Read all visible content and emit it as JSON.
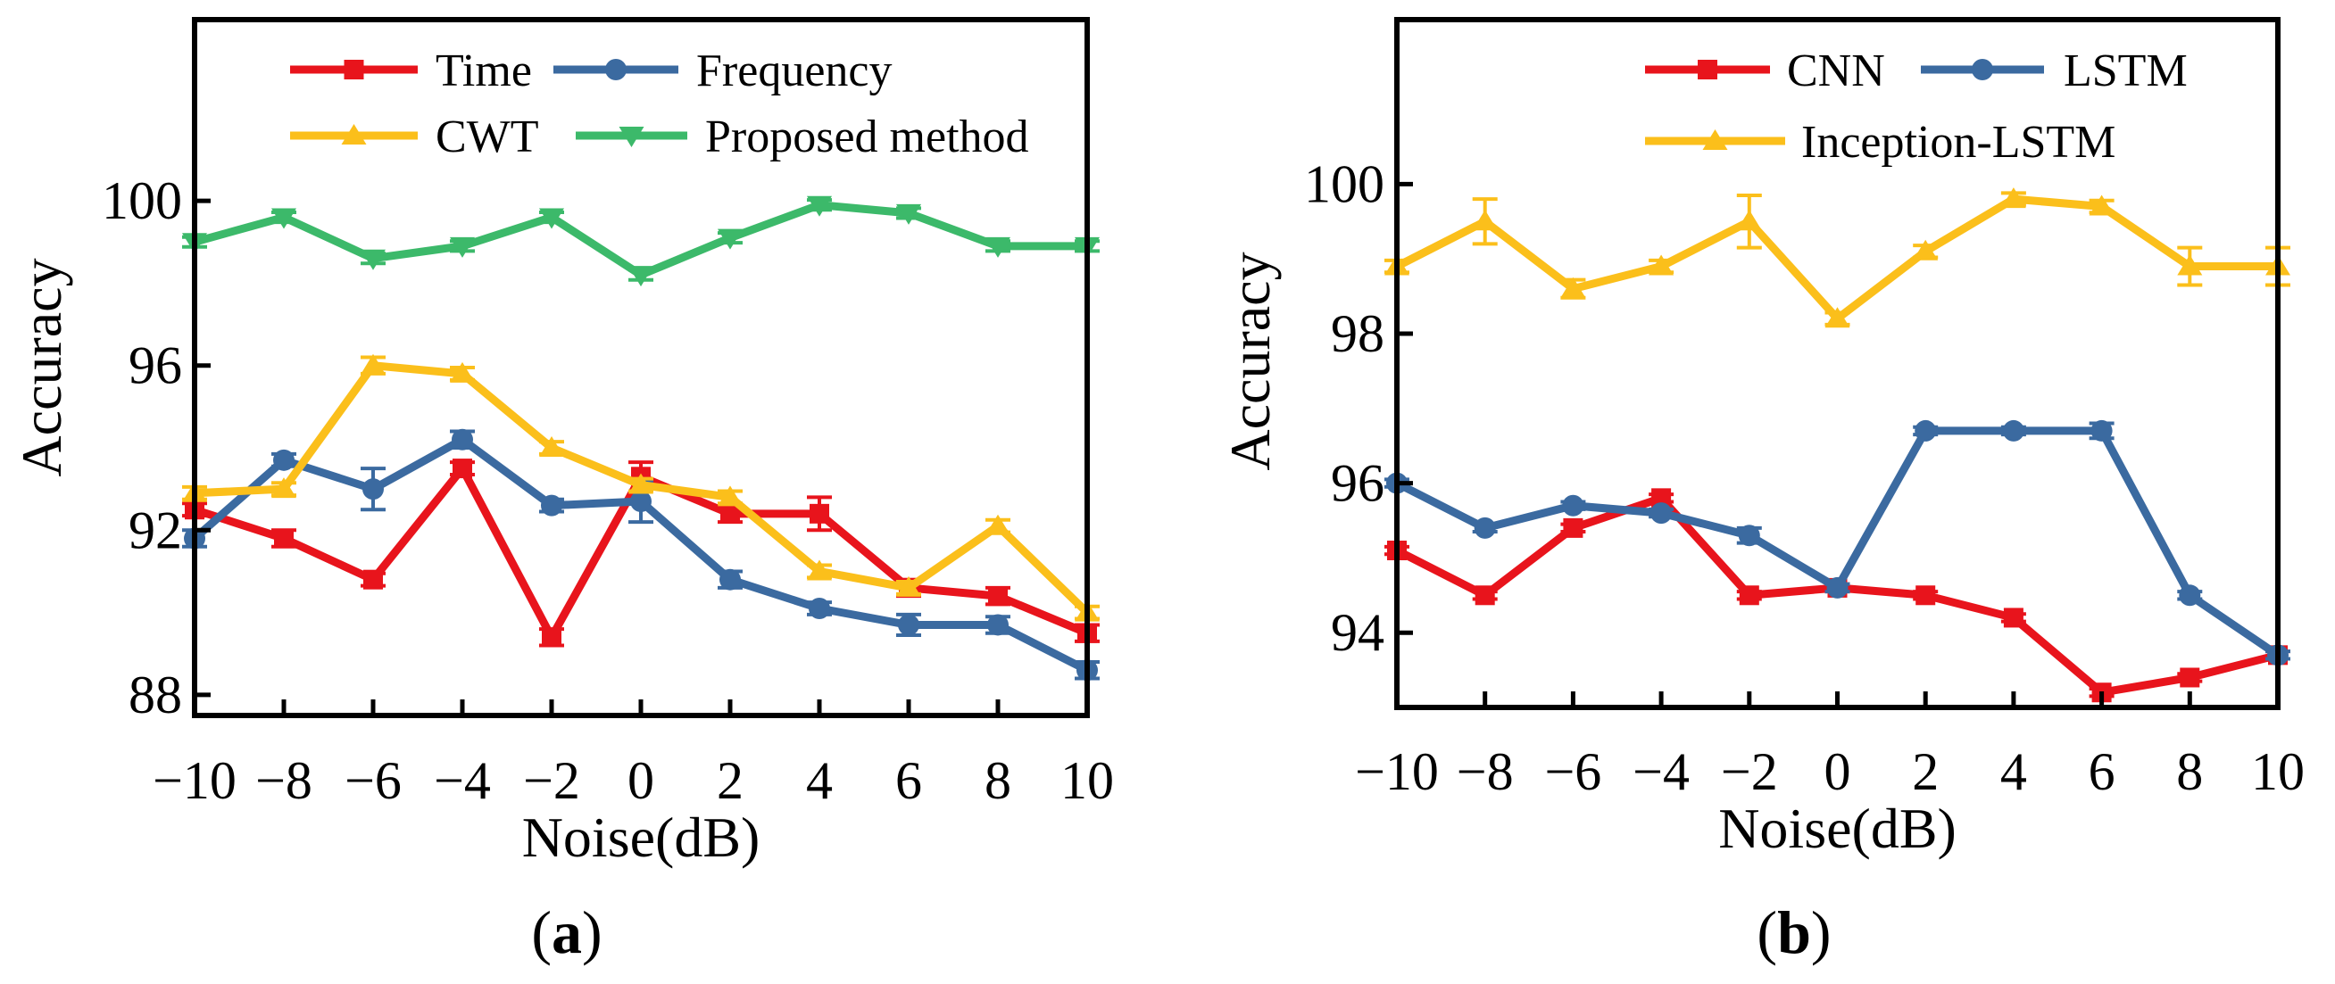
{
  "chart_data": [
    {
      "type": "line",
      "panel_label": "a",
      "xlabel": "Noise(dB)",
      "ylabel": "Accuracy",
      "x": [
        -10,
        -8,
        -6,
        -4,
        -2,
        0,
        2,
        4,
        6,
        8,
        10
      ],
      "x_tick_labels": [
        "−10",
        "−8",
        "−6",
        "−4",
        "−2",
        "0",
        "2",
        "4",
        "6",
        "8",
        "10"
      ],
      "xlim": [
        -10,
        10
      ],
      "ylim": [
        87.5,
        104.4
      ],
      "y_ticks": [
        88,
        92,
        96,
        100
      ],
      "y_tick_labels": [
        "88",
        "92",
        "96",
        "100"
      ],
      "grid": false,
      "legend_position": "top",
      "series": [
        {
          "name": "Time",
          "color": "#e8141c",
          "marker": "square",
          "values": [
            92.5,
            91.8,
            90.8,
            93.5,
            89.4,
            93.3,
            92.4,
            92.4,
            90.6,
            90.4,
            89.5
          ],
          "errors": [
            0.15,
            0.2,
            0.15,
            0.15,
            0.2,
            0.35,
            0.2,
            0.4,
            0.2,
            0.2,
            0.2
          ]
        },
        {
          "name": "Frequency",
          "color": "#3b6aa0",
          "marker": "circle",
          "values": [
            91.8,
            93.7,
            93.0,
            94.2,
            92.6,
            92.7,
            90.8,
            90.1,
            89.7,
            89.7,
            88.6
          ],
          "errors": [
            0.2,
            0.15,
            0.5,
            0.2,
            0.15,
            0.5,
            0.2,
            0.15,
            0.25,
            0.2,
            0.2
          ]
        },
        {
          "name": "CWT",
          "color": "#fbbf1b",
          "marker": "triangle-up",
          "values": [
            92.9,
            93.0,
            96.0,
            95.8,
            94.0,
            93.1,
            92.8,
            91.0,
            90.6,
            92.1,
            90.0
          ],
          "errors": [
            0.15,
            0.15,
            0.2,
            0.15,
            0.15,
            0.15,
            0.15,
            0.15,
            0.15,
            0.15,
            0.15
          ]
        },
        {
          "name": "Proposed method",
          "color": "#3cb96a",
          "marker": "triangle-down",
          "values": [
            99.0,
            99.6,
            98.6,
            98.9,
            99.6,
            98.2,
            99.1,
            99.9,
            99.7,
            98.9,
            98.9
          ],
          "errors": [
            0.12,
            0.12,
            0.12,
            0.12,
            0.12,
            0.12,
            0.12,
            0.12,
            0.12,
            0.12,
            0.12
          ]
        }
      ]
    },
    {
      "type": "line",
      "panel_label": "b",
      "xlabel": "Noise(dB)",
      "ylabel": "Accuracy",
      "x": [
        -10,
        -8,
        -6,
        -4,
        -2,
        0,
        2,
        4,
        6,
        8,
        10
      ],
      "x_tick_labels": [
        "−10",
        "−8",
        "−6",
        "−4",
        "−2",
        "0",
        "2",
        "4",
        "6",
        "8",
        "10"
      ],
      "xlim": [
        -10,
        10
      ],
      "ylim": [
        93.0,
        102.2
      ],
      "y_ticks": [
        94,
        96,
        98,
        100
      ],
      "y_tick_labels": [
        "94",
        "96",
        "98",
        "100"
      ],
      "grid": false,
      "legend_position": "top-right",
      "series": [
        {
          "name": "CNN",
          "color": "#e8141c",
          "marker": "square",
          "values": [
            95.1,
            94.5,
            95.4,
            95.8,
            94.5,
            94.6,
            94.5,
            94.2,
            93.2,
            93.4,
            93.7
          ],
          "errors": [
            0.05,
            0.05,
            0.05,
            0.05,
            0.05,
            0.05,
            0.05,
            0.05,
            0.05,
            0.05,
            0.05
          ]
        },
        {
          "name": "LSTM",
          "color": "#3b6aa0",
          "marker": "circle",
          "values": [
            96.0,
            95.4,
            95.7,
            95.6,
            95.3,
            94.6,
            96.7,
            96.7,
            96.7,
            94.5,
            93.7
          ],
          "errors": [
            0.05,
            0.05,
            0.05,
            0.05,
            0.1,
            0.05,
            0.05,
            0.05,
            0.1,
            0.05,
            0.05
          ]
        },
        {
          "name": "Inception-LSTM",
          "color": "#fbbf1b",
          "marker": "triangle-up",
          "values": [
            98.9,
            99.5,
            98.6,
            98.9,
            99.5,
            98.2,
            99.1,
            99.8,
            99.7,
            98.9,
            98.9
          ],
          "errors": [
            0.08,
            0.3,
            0.12,
            0.08,
            0.35,
            0.08,
            0.08,
            0.08,
            0.08,
            0.25,
            0.25
          ]
        }
      ]
    }
  ]
}
